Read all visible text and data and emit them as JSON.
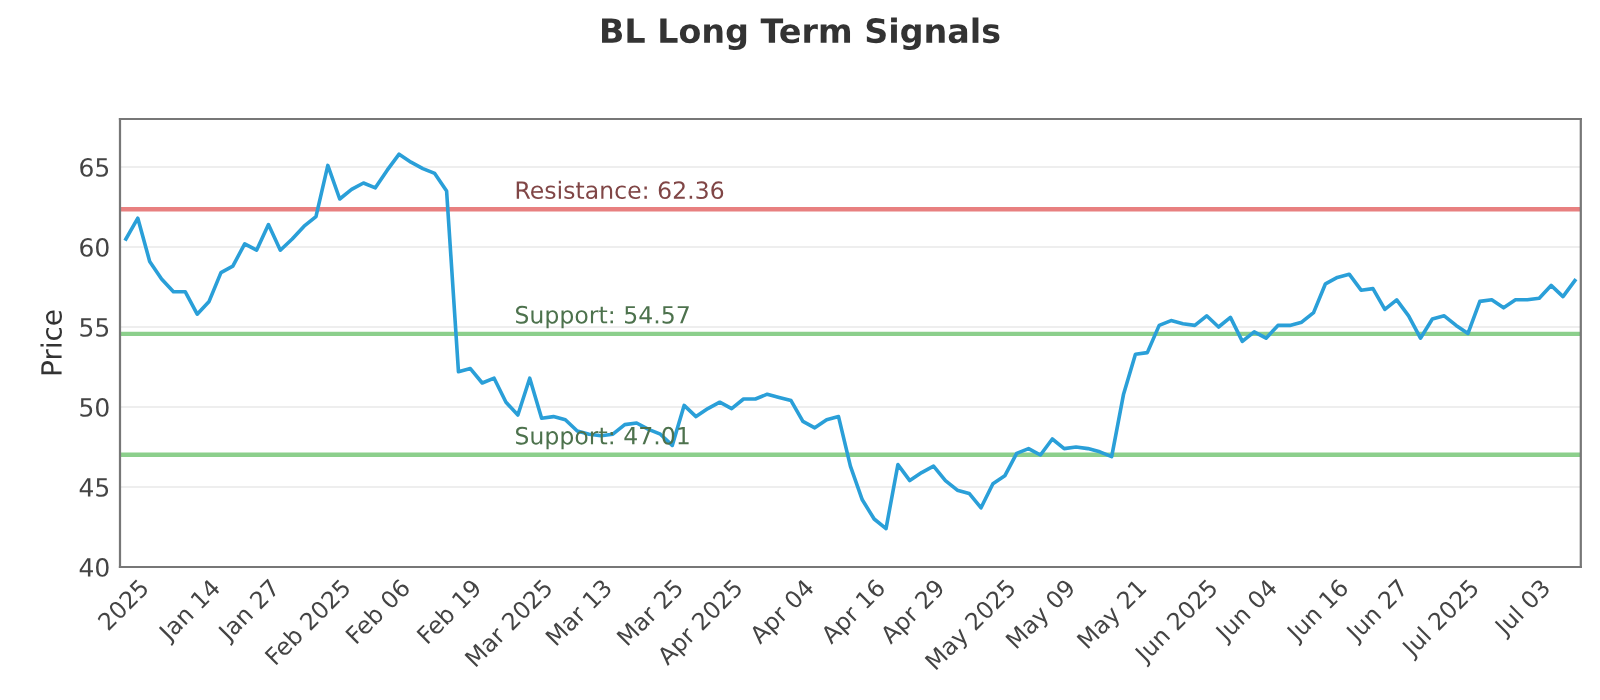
{
  "chart_data": {
    "type": "line",
    "title": "BL Long Term Signals",
    "ylabel": "Price",
    "categories": [
      null,
      "2025",
      null,
      null,
      null,
      null,
      null,
      "Jan 14",
      null,
      null,
      null,
      null,
      "Jan 27",
      null,
      null,
      null,
      null,
      null,
      "Feb 2025",
      null,
      null,
      null,
      null,
      "Feb 06",
      null,
      null,
      null,
      null,
      null,
      "Feb 19",
      null,
      null,
      null,
      null,
      null,
      "Mar 2025",
      null,
      null,
      null,
      null,
      "Mar 13",
      null,
      null,
      null,
      null,
      null,
      "Mar 25",
      null,
      null,
      null,
      null,
      "Apr 2025",
      null,
      null,
      null,
      null,
      null,
      "Apr 04",
      null,
      null,
      null,
      null,
      null,
      "Apr 16",
      null,
      null,
      null,
      null,
      "Apr 29",
      null,
      null,
      null,
      null,
      null,
      "May 2025",
      null,
      null,
      null,
      null,
      "May 09",
      null,
      null,
      null,
      null,
      null,
      "May 21",
      null,
      null,
      null,
      null,
      null,
      "Jun 2025",
      null,
      null,
      null,
      null,
      "Jun 04",
      null,
      null,
      null,
      null,
      null,
      "Jun 16",
      null,
      null,
      null,
      null,
      "Jun 27",
      null,
      null,
      null,
      null,
      null,
      "Jul 2025",
      null,
      null,
      null,
      null,
      null,
      "Jul 03",
      null,
      null,
      null
    ],
    "series": [
      {
        "color": "#2a9fd8",
        "values": [
          60.5,
          61.8,
          59.1,
          58.0,
          57.2,
          57.2,
          55.8,
          56.6,
          58.4,
          58.8,
          60.2,
          59.8,
          61.4,
          59.8,
          60.5,
          61.3,
          61.9,
          65.1,
          63.0,
          63.6,
          64.0,
          63.7,
          64.8,
          65.8,
          65.3,
          64.9,
          64.6,
          63.5,
          52.2,
          52.4,
          51.5,
          51.8,
          50.3,
          49.5,
          51.8,
          49.3,
          49.4,
          49.2,
          48.5,
          48.3,
          48.2,
          48.3,
          48.9,
          49.0,
          48.6,
          48.3,
          47.6,
          50.1,
          49.4,
          49.9,
          50.3,
          49.9,
          50.5,
          50.5,
          50.8,
          50.6,
          50.4,
          49.1,
          48.7,
          49.2,
          49.4,
          46.3,
          44.2,
          43.0,
          42.4,
          46.4,
          45.4,
          45.9,
          46.3,
          45.4,
          44.8,
          44.6,
          43.7,
          45.2,
          45.7,
          47.1,
          47.4,
          47.0,
          48.0,
          47.4,
          47.5,
          47.4,
          47.2,
          46.9,
          50.8,
          53.3,
          53.4,
          55.1,
          55.4,
          55.2,
          55.1,
          55.7,
          55.0,
          55.6,
          54.1,
          54.7,
          54.3,
          55.1,
          55.1,
          55.3,
          55.9,
          57.7,
          58.1,
          58.3,
          57.3,
          57.4,
          56.1,
          56.7,
          55.7,
          54.3,
          55.5,
          55.7,
          55.1,
          54.6,
          56.6,
          56.7,
          56.2,
          56.7,
          56.7,
          56.8,
          57.6,
          56.9,
          57.9
        ]
      }
    ],
    "ylim": [
      40,
      68
    ],
    "yticks": [
      40,
      45,
      50,
      55,
      60,
      65
    ],
    "grid": "y",
    "marker": "none",
    "line_style": "solid",
    "ref_lines": [
      {
        "axis": "y",
        "value": 62.36,
        "label": "Resistance: 62.36",
        "color": "#e88080"
      },
      {
        "axis": "y",
        "value": 54.57,
        "label": "Support: 54.57",
        "color": "#8ccf8c"
      },
      {
        "axis": "y",
        "value": 47.01,
        "label": "Support: 47.01",
        "color": "#8ccf8c"
      }
    ]
  }
}
